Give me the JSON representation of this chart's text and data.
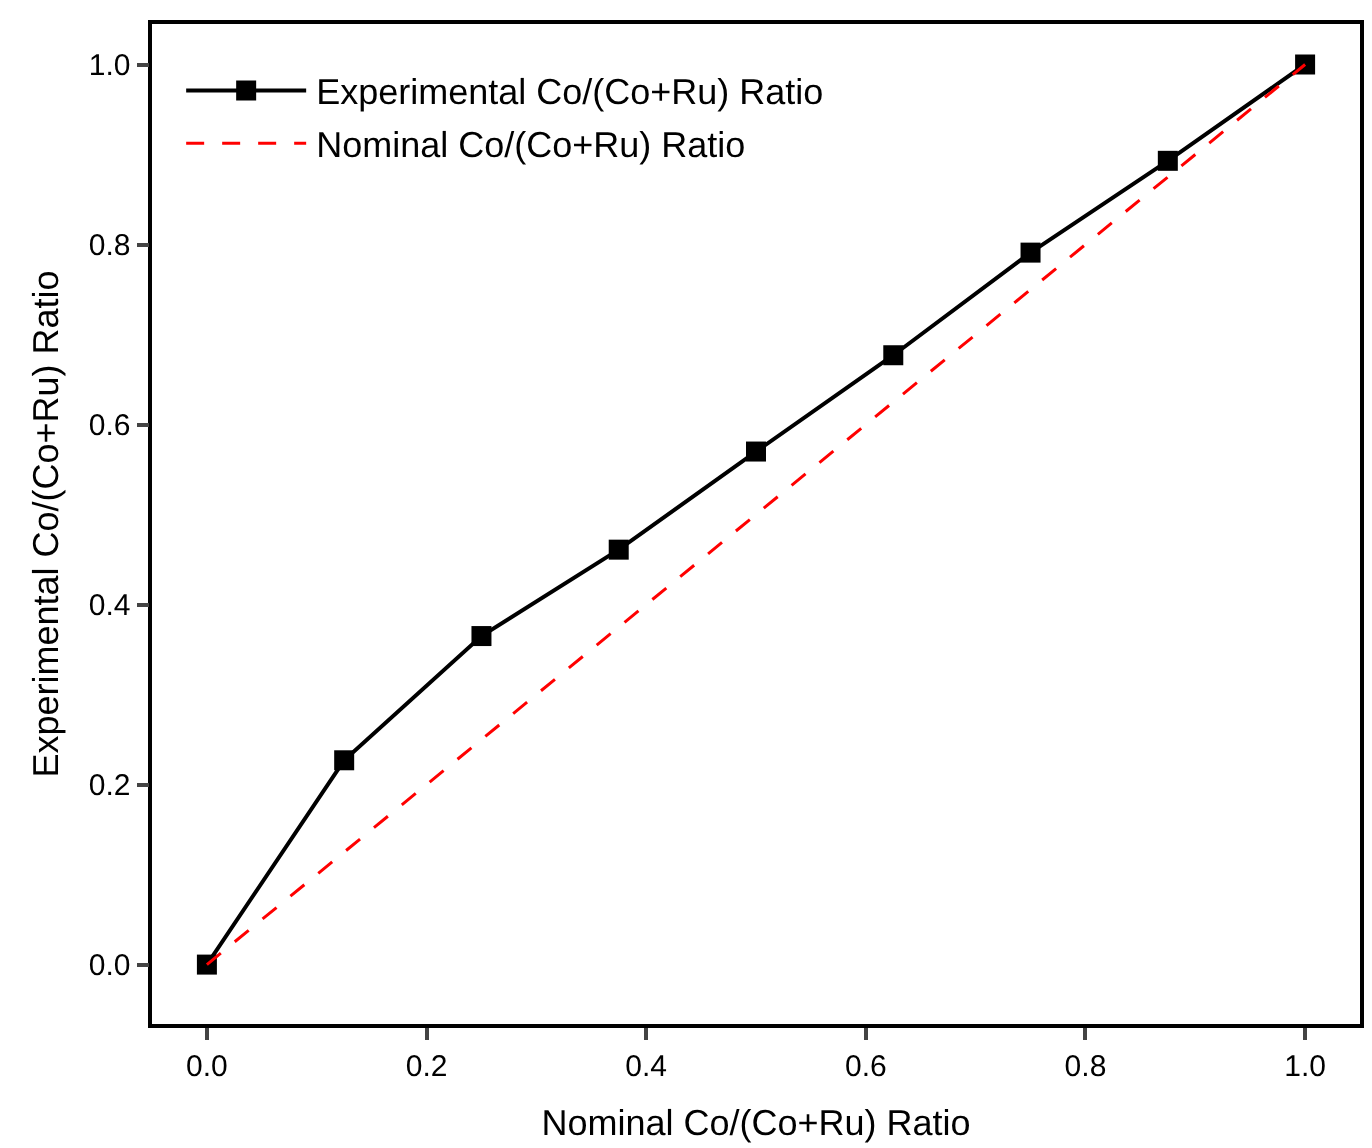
{
  "chart_data": {
    "type": "line",
    "xlabel": "Nominal Co/(Co+Ru) Ratio",
    "ylabel": "Experimental Co/(Co+Ru) Ratio",
    "x": [
      0,
      0.125,
      0.25,
      0.375,
      0.5,
      0.625,
      0.75,
      0.875,
      1.0
    ],
    "series": [
      {
        "name": "Experimental Co/(Co+Ru) Ratio",
        "color": "#000000",
        "marker": "square",
        "line_style": "solid",
        "values": [
          0.0,
          0.227,
          0.365,
          0.461,
          0.57,
          0.677,
          0.791,
          0.893,
          1.0
        ]
      },
      {
        "name": "Nominal Co/(Co+Ru) Ratio",
        "color": "#ff0000",
        "marker": "none",
        "line_style": "dashed",
        "values": [
          0.0,
          0.125,
          0.25,
          0.375,
          0.5,
          0.625,
          0.75,
          0.875,
          1.0
        ]
      }
    ],
    "xlim": [
      -0.05,
      1.05
    ],
    "ylim": [
      -0.066,
      1.045
    ],
    "xticks": [
      {
        "value": 0,
        "label": "0.0"
      },
      0.2,
      0.4,
      0.6,
      0.8,
      {
        "value": 1,
        "label": "1.0"
      }
    ],
    "yticks": [
      {
        "value": 0,
        "label": "0.0"
      },
      0.2,
      0.4,
      0.6,
      0.8,
      {
        "value": 1,
        "label": "1.0"
      }
    ],
    "legend": "top left"
  }
}
